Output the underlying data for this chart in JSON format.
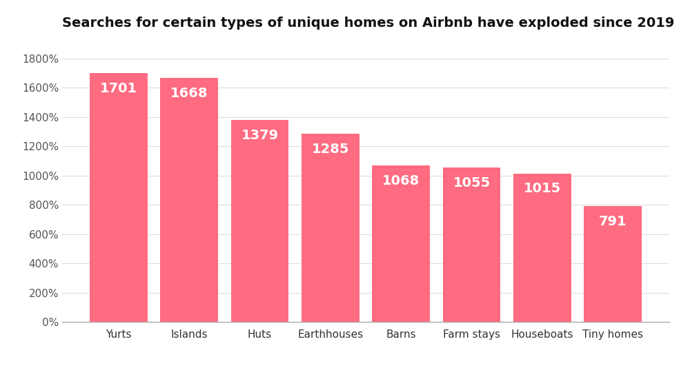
{
  "title": "Searches for certain types of unique homes on Airbnb have exploded since 2019",
  "categories": [
    "Yurts",
    "Islands",
    "Huts",
    "Earthhouses",
    "Barns",
    "Farm stays",
    "Houseboats",
    "Tiny homes"
  ],
  "values": [
    1701,
    1668,
    1379,
    1285,
    1068,
    1055,
    1015,
    791
  ],
  "bar_color": "#FF6B81",
  "text_color": "#ffffff",
  "title_color": "#111111",
  "background_color": "#ffffff",
  "ylim": [
    0,
    1900
  ],
  "yticks": [
    0,
    200,
    400,
    600,
    800,
    1000,
    1200,
    1400,
    1600,
    1800
  ],
  "bar_label_fontsize": 14,
  "title_fontsize": 14,
  "tick_fontsize": 11,
  "bar_width": 0.82
}
